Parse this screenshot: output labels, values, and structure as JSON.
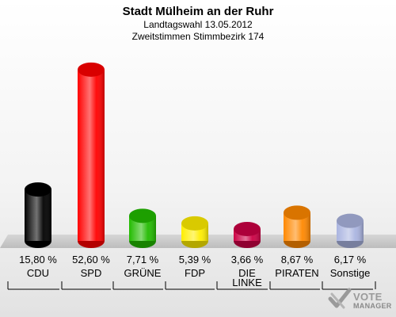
{
  "chart_data": {
    "type": "bar",
    "title": "Stadt Mülheim an der Ruhr",
    "subtitle_1": "Landtagswahl 13.05.2012",
    "subtitle_2": "Zweitstimmen Stimmbezirk 174",
    "categories": [
      "CDU",
      "SPD",
      "GRÜNE",
      "FDP",
      "DIE LINKE",
      "PIRATEN",
      "Sonstige"
    ],
    "category_lines": [
      [
        "CDU"
      ],
      [
        "SPD"
      ],
      [
        "GRÜNE"
      ],
      [
        "FDP"
      ],
      [
        "DIE",
        "LINKE"
      ],
      [
        "PIRATEN"
      ],
      [
        "Sonstige"
      ]
    ],
    "values": [
      15.8,
      52.6,
      7.71,
      5.39,
      3.66,
      8.67,
      6.17
    ],
    "value_labels": [
      "15,80 %",
      "52,60 %",
      "7,71 %",
      "5,39 %",
      "3,66 %",
      "8,67 %",
      "6,17 %"
    ],
    "colors": [
      "#000000",
      "#ff0000",
      "#22bb00",
      "#ffee00",
      "#cc0044",
      "#ff8800",
      "#aab4e0"
    ],
    "ylim": [
      0,
      55
    ]
  },
  "logo": {
    "line1": "VOTE",
    "line2": "MANAGER"
  }
}
